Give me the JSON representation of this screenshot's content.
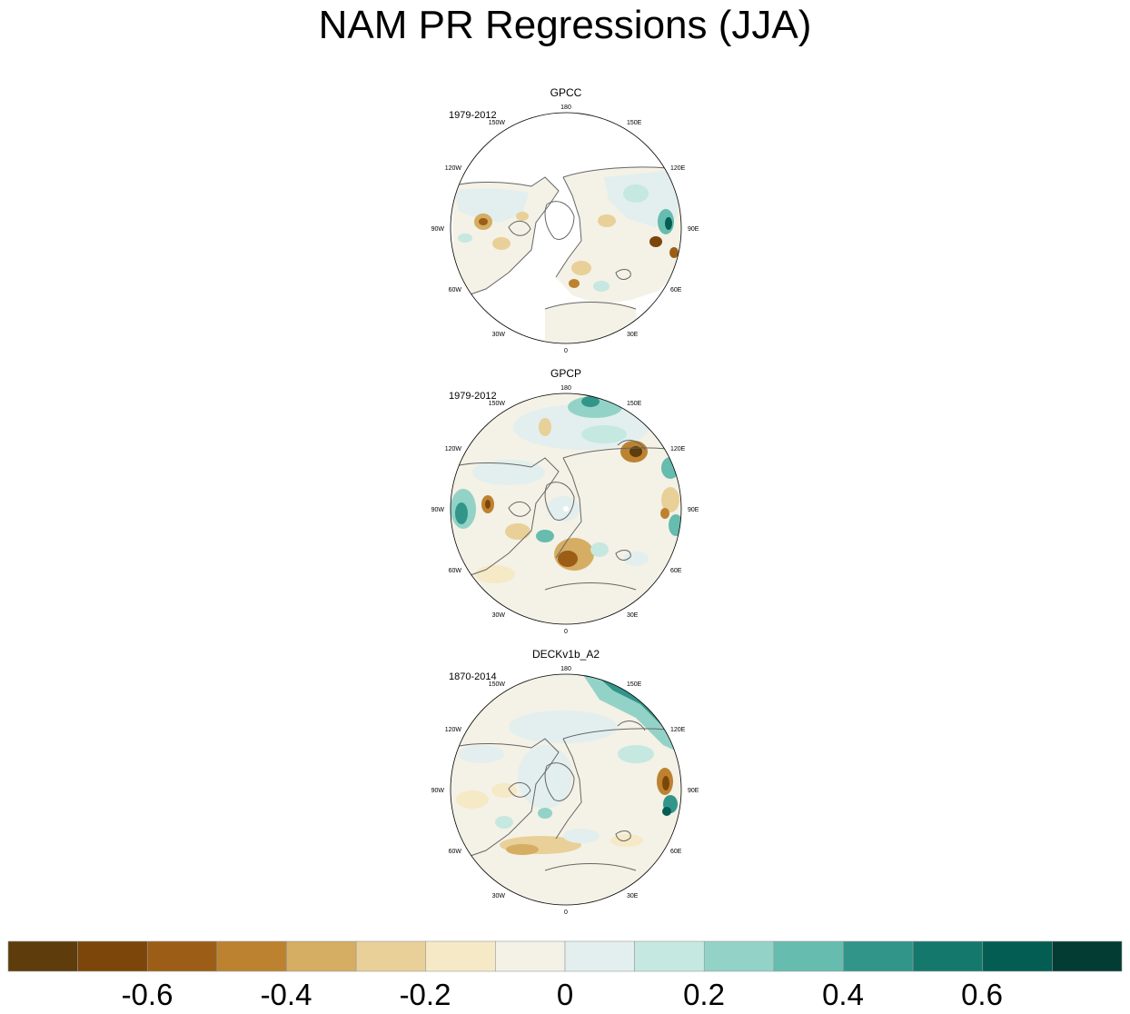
{
  "title": "NAM PR Regressions (JJA)",
  "panels": [
    {
      "title": "GPCC",
      "period": "1979-2012",
      "lon_labels": [
        "180",
        "150E",
        "120E",
        "90E",
        "60E",
        "30E",
        "0",
        "30W",
        "60W",
        "90W",
        "120W",
        "150W"
      ]
    },
    {
      "title": "GPCP",
      "period": "1979-2012",
      "lon_labels": [
        "180",
        "150E",
        "120E",
        "90E",
        "60E",
        "30E",
        "0",
        "30W",
        "60W",
        "90W",
        "120W",
        "150W"
      ]
    },
    {
      "title": "DECKv1b_A2",
      "period": "1870-2014",
      "lon_labels": [
        "180",
        "150E",
        "120E",
        "90E",
        "60E",
        "30E",
        "0",
        "30W",
        "60W",
        "90W",
        "120W",
        "150W"
      ]
    }
  ],
  "colorbar": {
    "colors": [
      "#5e3c0b",
      "#7c460a",
      "#9c5e17",
      "#bd8230",
      "#d5ad63",
      "#e8d098",
      "#f6e9c6",
      "#f4f1e6",
      "#e2efee",
      "#c5e8e1",
      "#93d3c7",
      "#66bcae",
      "#32958a",
      "#15786d",
      "#045d52",
      "#023c32"
    ],
    "tick_labels": [
      "-0.6",
      "-0.4",
      "-0.2",
      "0",
      "0.2",
      "0.4",
      "0.6"
    ]
  },
  "legend": {
    "colors": {
      "land_outline": "#666666",
      "missing": "#ffffff",
      "frame": "#000000"
    }
  }
}
